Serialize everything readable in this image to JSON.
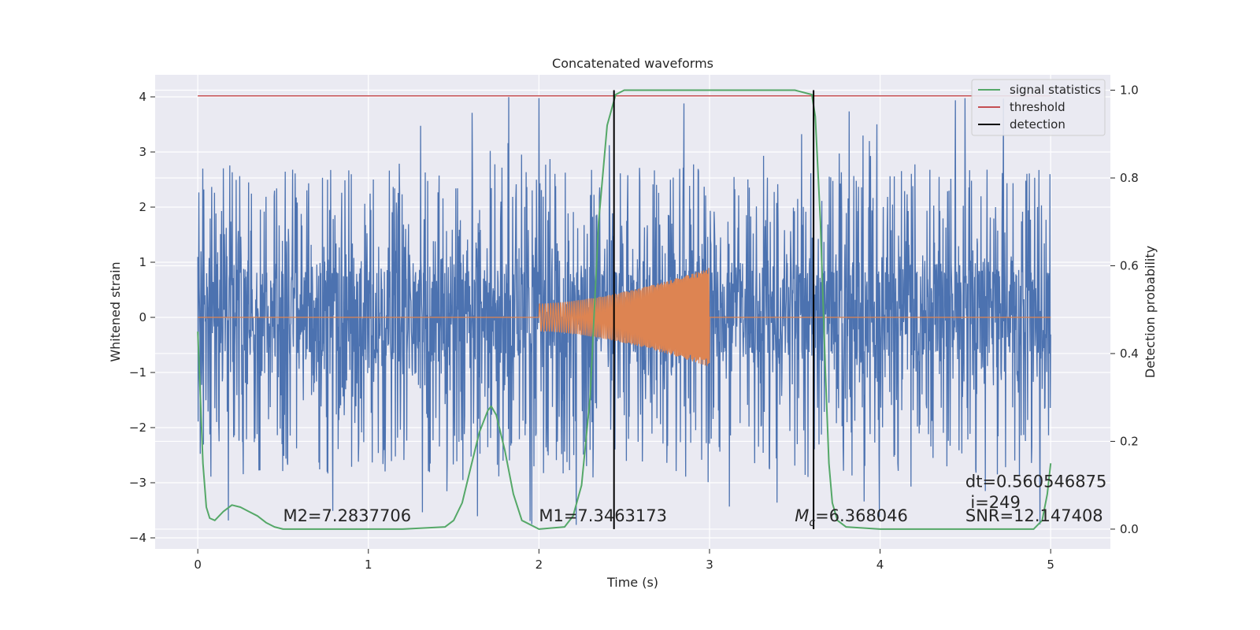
{
  "chart_data": {
    "type": "line",
    "title": "Concatenated waveforms",
    "xlabel": "Time (s)",
    "ylabel_left": "Whitened strain",
    "ylabel_right": "Detection probability",
    "xlim": [
      -0.25,
      5.35
    ],
    "ylim_left": [
      -4.2,
      4.4
    ],
    "ylim_right": [
      -0.045,
      1.035
    ],
    "x_ticks": [
      "0",
      "1",
      "2",
      "3",
      "4",
      "5"
    ],
    "x_tick_values": [
      0,
      1,
      2,
      3,
      4,
      5
    ],
    "y_left_ticks": [
      "−4",
      "−3",
      "−2",
      "−1",
      "0",
      "1",
      "2",
      "3",
      "4"
    ],
    "y_left_tick_values": [
      -4,
      -3,
      -2,
      -1,
      0,
      1,
      2,
      3,
      4
    ],
    "y_right_ticks": [
      "0.0",
      "0.2",
      "0.4",
      "0.6",
      "0.8",
      "1.0"
    ],
    "y_right_tick_values": [
      0.0,
      0.2,
      0.4,
      0.6,
      0.8,
      1.0
    ],
    "grid": true,
    "legend_position": "top-right",
    "colors": {
      "background": "#eaeaf2",
      "noise": "#4c72b0",
      "template": "#dd8452",
      "signal_statistics": "#55a868",
      "threshold": "#c44e52",
      "detection": "#000000"
    },
    "series": [
      {
        "name": "",
        "axis": "left",
        "kind": "whitened noise (time series)",
        "x_range": [
          0,
          5
        ],
        "band": [
          -0.65,
          0.85
        ],
        "spike_max": 4.0,
        "spike_min": -3.8
      },
      {
        "name": "",
        "axis": "left",
        "kind": "chirp template",
        "x_range": [
          0,
          5
        ],
        "chirp_x": [
          2.0,
          3.0
        ],
        "amplitude_start": 0.25,
        "amplitude_end": 0.9
      },
      {
        "name": "signal statistics",
        "axis": "right",
        "x": [
          0,
          0.03,
          0.05,
          0.07,
          0.1,
          0.15,
          0.2,
          0.25,
          0.3,
          0.35,
          0.4,
          0.45,
          0.5,
          0.8,
          1.2,
          1.45,
          1.5,
          1.55,
          1.6,
          1.65,
          1.7,
          1.72,
          1.75,
          1.8,
          1.85,
          1.9,
          2.0,
          2.15,
          2.2,
          2.25,
          2.3,
          2.35,
          2.4,
          2.45,
          2.5,
          3.0,
          3.5,
          3.6,
          3.62,
          3.65,
          3.68,
          3.7,
          3.72,
          3.75,
          3.8,
          4.0,
          4.5,
          4.9,
          4.95,
          4.98,
          5.0
        ],
        "values": [
          0.45,
          0.15,
          0.05,
          0.025,
          0.02,
          0.04,
          0.055,
          0.05,
          0.04,
          0.03,
          0.015,
          0.005,
          0.0,
          0.0,
          0.0,
          0.005,
          0.02,
          0.06,
          0.14,
          0.22,
          0.27,
          0.28,
          0.26,
          0.18,
          0.08,
          0.02,
          0.0,
          0.005,
          0.03,
          0.1,
          0.3,
          0.7,
          0.92,
          0.99,
          1.0,
          1.0,
          1.0,
          0.99,
          0.94,
          0.7,
          0.35,
          0.15,
          0.06,
          0.02,
          0.005,
          0.0,
          0.0,
          0.0,
          0.02,
          0.08,
          0.15
        ]
      },
      {
        "name": "threshold",
        "axis": "right",
        "x": [
          0,
          5
        ],
        "values": [
          0.987,
          0.987
        ]
      },
      {
        "name": "detection",
        "axis": "right",
        "x_positions": [
          2.44,
          3.61
        ],
        "y_range": [
          0.0,
          1.0
        ]
      }
    ],
    "annotations": [
      {
        "text": "M2=7.2837706",
        "x": 0.5,
        "y": -3.7
      },
      {
        "text": "M1=7.3463173",
        "x": 2.0,
        "y": -3.7
      },
      {
        "text_italic": "M",
        "text_sub": "c",
        "text": "=6.368046",
        "x": 3.5,
        "y": -3.7
      },
      {
        "text": "dt=0.560546875",
        "x": 4.5,
        "y": -3.08
      },
      {
        "text": "i=249",
        "x": 4.53,
        "y": -3.46
      },
      {
        "text": "SNR=12.147408",
        "x": 4.5,
        "y": -3.7
      }
    ]
  }
}
